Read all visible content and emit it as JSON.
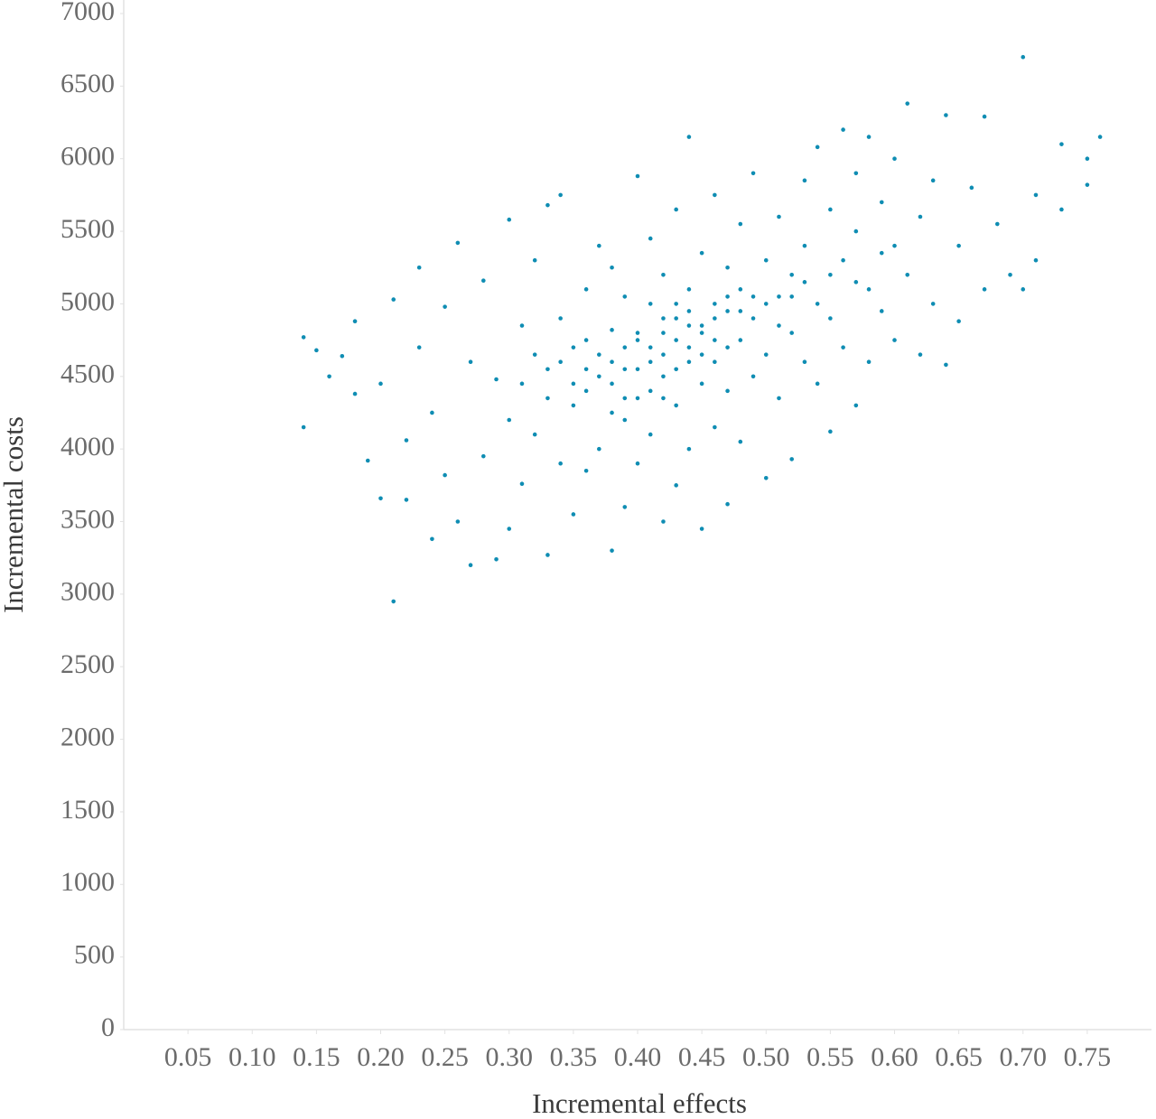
{
  "chart_data": {
    "type": "scatter",
    "x_label": "Incremental effects",
    "y_label": "Incremental costs",
    "color": "#0f8db3",
    "xlim": [
      0,
      0.8
    ],
    "ylim": [
      0,
      7000
    ],
    "xticks": [
      0.05,
      {
        "value": 0.1,
        "label": "0.10"
      },
      0.15,
      {
        "value": 0.2,
        "label": "0.20"
      },
      0.25,
      {
        "value": 0.3,
        "label": "0.30"
      },
      0.35,
      {
        "value": 0.4,
        "label": "0.40"
      },
      0.45,
      {
        "value": 0.5,
        "label": "0.50"
      },
      0.55,
      {
        "value": 0.6,
        "label": "0.60"
      },
      0.65,
      {
        "value": 0.7,
        "label": "0.70"
      },
      0.75
    ],
    "yticks": [
      0,
      500,
      1000,
      1500,
      2000,
      2500,
      3000,
      3500,
      4000,
      4500,
      5000,
      5500,
      6000,
      6500,
      7000
    ],
    "x": [
      0.14,
      0.14,
      0.15,
      0.16,
      0.17,
      0.18,
      0.18,
      0.19,
      0.2,
      0.2,
      0.21,
      0.21,
      0.22,
      0.22,
      0.23,
      0.23,
      0.24,
      0.24,
      0.25,
      0.25,
      0.26,
      0.26,
      0.27,
      0.27,
      0.28,
      0.28,
      0.29,
      0.29,
      0.3,
      0.3,
      0.3,
      0.31,
      0.31,
      0.32,
      0.32,
      0.33,
      0.33,
      0.33,
      0.34,
      0.34,
      0.34,
      0.35,
      0.35,
      0.35,
      0.36,
      0.36,
      0.36,
      0.37,
      0.37,
      0.37,
      0.38,
      0.38,
      0.38,
      0.38,
      0.39,
      0.39,
      0.39,
      0.39,
      0.4,
      0.4,
      0.4,
      0.4,
      0.41,
      0.41,
      0.41,
      0.41,
      0.42,
      0.42,
      0.42,
      0.42,
      0.43,
      0.43,
      0.43,
      0.43,
      0.44,
      0.44,
      0.44,
      0.44,
      0.45,
      0.45,
      0.45,
      0.45,
      0.46,
      0.46,
      0.46,
      0.46,
      0.47,
      0.47,
      0.47,
      0.47,
      0.48,
      0.48,
      0.48,
      0.48,
      0.49,
      0.49,
      0.49,
      0.5,
      0.5,
      0.5,
      0.51,
      0.51,
      0.51,
      0.52,
      0.52,
      0.52,
      0.53,
      0.53,
      0.53,
      0.54,
      0.54,
      0.54,
      0.55,
      0.55,
      0.55,
      0.56,
      0.56,
      0.56,
      0.57,
      0.57,
      0.57,
      0.58,
      0.58,
      0.58,
      0.59,
      0.59,
      0.6,
      0.6,
      0.6,
      0.61,
      0.61,
      0.62,
      0.62,
      0.63,
      0.63,
      0.64,
      0.64,
      0.65,
      0.65,
      0.66,
      0.67,
      0.67,
      0.68,
      0.69,
      0.7,
      0.7,
      0.71,
      0.71,
      0.73,
      0.73,
      0.75,
      0.75,
      0.76,
      0.4,
      0.41,
      0.42,
      0.43,
      0.44,
      0.45,
      0.46,
      0.47,
      0.42,
      0.43,
      0.44,
      0.45,
      0.39,
      0.38,
      0.37,
      0.36,
      0.35,
      0.48,
      0.49,
      0.5,
      0.41,
      0.4,
      0.44,
      0.46,
      0.47,
      0.43,
      0.42,
      0.39,
      0.38,
      0.51,
      0.52,
      0.53,
      0.36,
      0.34,
      0.33,
      0.32,
      0.31,
      0.55,
      0.57,
      0.59
    ],
    "values": [
      4770,
      4150,
      4680,
      4500,
      4640,
      4880,
      4380,
      3920,
      3660,
      4450,
      2950,
      5030,
      4060,
      3650,
      5250,
      4700,
      3380,
      4250,
      3820,
      4980,
      5420,
      3500,
      3200,
      4600,
      5160,
      3950,
      3240,
      4480,
      5580,
      3450,
      4200,
      4850,
      3760,
      5300,
      4100,
      3270,
      5680,
      4550,
      3900,
      4900,
      5750,
      4300,
      3550,
      4700,
      5100,
      4400,
      3850,
      4650,
      5400,
      4000,
      3300,
      4820,
      4450,
      5250,
      3600,
      4550,
      5050,
      4200,
      5880,
      4750,
      4350,
      3900,
      5000,
      4600,
      5450,
      4100,
      3500,
      4800,
      4500,
      5200,
      4900,
      4300,
      5650,
      3750,
      6150,
      4700,
      5100,
      4000,
      3450,
      4850,
      5350,
      4450,
      5000,
      4600,
      5750,
      4150,
      3620,
      4950,
      5250,
      4400,
      5550,
      4750,
      5100,
      4050,
      5900,
      4900,
      4500,
      5300,
      4650,
      3800,
      5050,
      5600,
      4350,
      3930,
      5200,
      4800,
      5850,
      4600,
      5400,
      6080,
      5000,
      4450,
      5650,
      4900,
      4120,
      6200,
      5300,
      4700,
      5500,
      4300,
      5900,
      5100,
      4600,
      6150,
      5700,
      4950,
      5400,
      4750,
      6000,
      6380,
      5200,
      4650,
      5600,
      5850,
      5000,
      6300,
      4580,
      5400,
      4880,
      5800,
      5100,
      6290,
      5550,
      5200,
      6700,
      5100,
      5750,
      5300,
      6100,
      5650,
      5820,
      6000,
      6150,
      4800,
      4700,
      4650,
      4750,
      4850,
      4800,
      4900,
      4700,
      4900,
      4550,
      4600,
      4650,
      4700,
      4600,
      4500,
      4550,
      4450,
      4950,
      5050,
      5000,
      4400,
      4550,
      4950,
      4750,
      5050,
      5000,
      4350,
      4350,
      4250,
      4850,
      5050,
      5150,
      4750,
      4600,
      4350,
      4650,
      4450,
      5200,
      5150,
      5350
    ]
  }
}
